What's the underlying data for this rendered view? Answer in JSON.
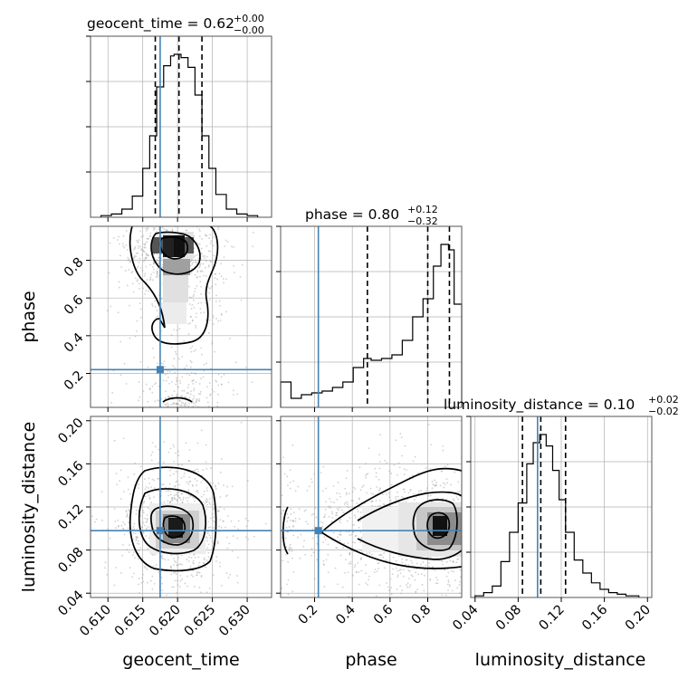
{
  "chart_data": {
    "type": "corner",
    "parameters": [
      "geocent_time",
      "phase",
      "luminosity_distance"
    ],
    "axis_labels": {
      "geocent_time": "geocent_time",
      "phase": "phase",
      "luminosity_distance": "luminosity_distance"
    },
    "titles": {
      "geocent_time": {
        "name": "geocent_time",
        "median": "0.62",
        "plus": "+0.00",
        "minus": "−0.00"
      },
      "phase": {
        "name": "phase",
        "median": "0.80",
        "plus": "+0.12",
        "minus": "−0.32"
      },
      "luminosity_distance": {
        "name": "luminosity_distance",
        "median": "0.10",
        "plus": "+0.02",
        "minus": "−0.02"
      }
    },
    "ranges": {
      "geocent_time": [
        0.6075,
        0.6335
      ],
      "phase": [
        0.02,
        0.98
      ],
      "luminosity_distance": [
        0.036,
        0.204
      ]
    },
    "ticks": {
      "geocent_time": {
        "values": [
          0.61,
          0.615,
          0.62,
          0.625,
          0.63
        ],
        "labels": [
          "0.610",
          "0.615",
          "0.620",
          "0.625",
          "0.630"
        ]
      },
      "phase": {
        "values": [
          0.2,
          0.4,
          0.6,
          0.8
        ],
        "labels": [
          "0.2",
          "0.4",
          "0.6",
          "0.8"
        ]
      },
      "luminosity_distance": {
        "values": [
          0.04,
          0.08,
          0.12,
          0.16,
          0.2
        ],
        "labels": [
          "0.04",
          "0.08",
          "0.12",
          "0.16",
          "0.20"
        ]
      }
    },
    "truths": {
      "geocent_time": 0.6175,
      "phase": 0.22,
      "luminosity_distance": 0.098
    },
    "quantiles": {
      "geocent_time": [
        0.6168,
        0.6202,
        0.6235
      ],
      "phase": [
        0.48,
        0.8,
        0.915
      ],
      "luminosity_distance": [
        0.084,
        0.101,
        0.124
      ]
    },
    "histograms": {
      "geocent_time": {
        "edges": [
          0.609,
          0.6105,
          0.612,
          0.6135,
          0.615,
          0.616,
          0.617,
          0.618,
          0.619,
          0.6195,
          0.6205,
          0.6215,
          0.6225,
          0.6235,
          0.6245,
          0.6255,
          0.627,
          0.6285,
          0.63,
          0.6315
        ],
        "counts": [
          0.01,
          0.02,
          0.05,
          0.13,
          0.3,
          0.5,
          0.8,
          0.93,
          0.99,
          1.0,
          0.98,
          0.92,
          0.75,
          0.5,
          0.3,
          0.14,
          0.05,
          0.02,
          0.01
        ]
      },
      "phase": {
        "edges": [
          0.02,
          0.075,
          0.13,
          0.185,
          0.24,
          0.295,
          0.35,
          0.405,
          0.46,
          0.5,
          0.555,
          0.61,
          0.665,
          0.72,
          0.775,
          0.83,
          0.87,
          0.91,
          0.94,
          0.98
        ],
        "counts": [
          0.14,
          0.05,
          0.07,
          0.08,
          0.09,
          0.11,
          0.14,
          0.22,
          0.27,
          0.26,
          0.27,
          0.29,
          0.37,
          0.5,
          0.6,
          0.78,
          0.9,
          0.87,
          0.57
        ]
      },
      "luminosity_distance": {
        "edges": [
          0.04,
          0.048,
          0.056,
          0.064,
          0.072,
          0.08,
          0.088,
          0.094,
          0.1,
          0.106,
          0.112,
          0.118,
          0.124,
          0.132,
          0.14,
          0.148,
          0.156,
          0.164,
          0.172,
          0.18,
          0.192
        ],
        "counts": [
          0.01,
          0.03,
          0.07,
          0.22,
          0.4,
          0.58,
          0.82,
          0.95,
          1.0,
          0.93,
          0.78,
          0.6,
          0.4,
          0.23,
          0.15,
          0.09,
          0.05,
          0.03,
          0.02,
          0.01
        ]
      }
    },
    "grid": true,
    "colors": {
      "truth": "#4682b4",
      "contour": "#000000",
      "scatter": "#9a9a9a",
      "grid": "#b0b0b0"
    }
  }
}
